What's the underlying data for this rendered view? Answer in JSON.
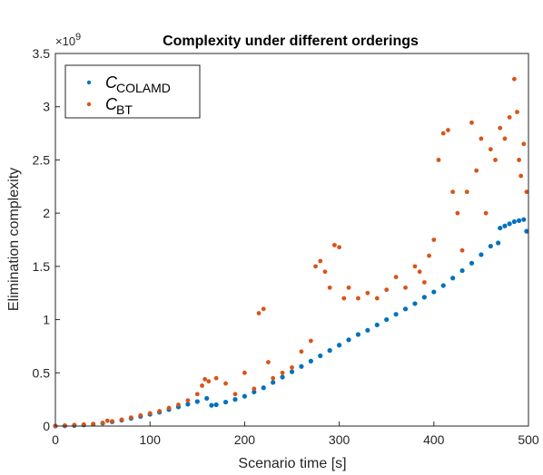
{
  "chart_data": {
    "type": "scatter",
    "title": "Complexity under different orderings",
    "xlabel": "Scenario time [s]",
    "ylabel": "Elimination complexity",
    "y_exponent_label": "×10",
    "y_exponent_value": "9",
    "xlim": [
      0,
      500
    ],
    "ylim": [
      0,
      3.5
    ],
    "xticks": [
      0,
      100,
      200,
      300,
      400,
      500
    ],
    "yticks": [
      0,
      0.5,
      1,
      1.5,
      2,
      2.5,
      3,
      3.5
    ],
    "xtick_labels": [
      "0",
      "100",
      "200",
      "300",
      "400",
      "500"
    ],
    "ytick_labels": [
      "0",
      "0.5",
      "1",
      "1.5",
      "2",
      "2.5",
      "3",
      "3.5"
    ],
    "legend_position": "top-left",
    "grid": false,
    "series": [
      {
        "name": "C_COLAMD",
        "legend_label_main": "C",
        "legend_label_sub": "COLAMD",
        "color": "#0072BD",
        "x": [
          0,
          10,
          20,
          30,
          40,
          50,
          60,
          70,
          80,
          90,
          100,
          110,
          120,
          130,
          140,
          150,
          160,
          165,
          170,
          180,
          190,
          200,
          210,
          220,
          230,
          240,
          250,
          260,
          270,
          280,
          290,
          300,
          310,
          320,
          330,
          340,
          350,
          360,
          370,
          380,
          390,
          400,
          410,
          420,
          430,
          440,
          450,
          460,
          468,
          470,
          475,
          480,
          485,
          490,
          495,
          498
        ],
        "y": [
          0.0,
          0.002,
          0.005,
          0.01,
          0.017,
          0.027,
          0.04,
          0.055,
          0.072,
          0.09,
          0.11,
          0.13,
          0.155,
          0.18,
          0.205,
          0.23,
          0.26,
          0.195,
          0.2,
          0.225,
          0.25,
          0.28,
          0.32,
          0.36,
          0.41,
          0.46,
          0.51,
          0.56,
          0.61,
          0.66,
          0.71,
          0.76,
          0.81,
          0.86,
          0.9,
          0.95,
          1.0,
          1.05,
          1.1,
          1.15,
          1.21,
          1.26,
          1.32,
          1.39,
          1.46,
          1.53,
          1.61,
          1.69,
          1.72,
          1.86,
          1.88,
          1.9,
          1.92,
          1.93,
          1.94,
          1.83
        ]
      },
      {
        "name": "C_BT",
        "legend_label_main": "C",
        "legend_label_sub": "BT",
        "color": "#D95319",
        "x": [
          0,
          10,
          20,
          30,
          40,
          50,
          55,
          60,
          70,
          80,
          90,
          100,
          110,
          120,
          130,
          140,
          150,
          155,
          158,
          162,
          170,
          180,
          190,
          200,
          210,
          215,
          220,
          225,
          230,
          240,
          250,
          260,
          270,
          275,
          280,
          285,
          290,
          295,
          300,
          305,
          310,
          320,
          330,
          340,
          350,
          360,
          370,
          380,
          385,
          390,
          395,
          400,
          405,
          410,
          415,
          420,
          425,
          430,
          435,
          440,
          445,
          450,
          455,
          460,
          465,
          470,
          475,
          480,
          485,
          488,
          490,
          492,
          495,
          498
        ],
        "y": [
          0.0,
          0.005,
          0.01,
          0.015,
          0.02,
          0.03,
          0.05,
          0.045,
          0.06,
          0.08,
          0.1,
          0.12,
          0.14,
          0.17,
          0.2,
          0.24,
          0.3,
          0.38,
          0.44,
          0.42,
          0.45,
          0.4,
          0.3,
          0.5,
          0.35,
          1.06,
          1.1,
          0.6,
          0.45,
          0.5,
          0.55,
          0.7,
          0.8,
          1.5,
          1.55,
          1.45,
          1.3,
          1.7,
          1.68,
          1.2,
          1.3,
          1.2,
          1.25,
          1.2,
          1.28,
          1.4,
          1.3,
          1.5,
          1.45,
          1.35,
          1.6,
          1.75,
          2.5,
          2.75,
          2.78,
          2.2,
          2.0,
          1.65,
          2.2,
          2.85,
          2.4,
          2.7,
          2.0,
          2.6,
          2.5,
          2.8,
          2.7,
          2.9,
          3.26,
          2.95,
          2.5,
          2.35,
          2.65,
          2.2
        ]
      }
    ]
  }
}
